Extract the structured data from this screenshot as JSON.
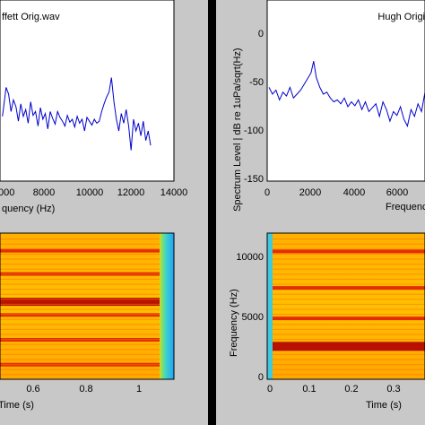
{
  "chart_data": [
    {
      "id": "left-spectrum",
      "type": "line",
      "title": "ffett Orig.wav",
      "xlabel": "quency (Hz)",
      "ylabel": "",
      "xlim": [
        -200,
        14000
      ],
      "ylim": [
        -150,
        0
      ],
      "x_ticks": [
        "000",
        "8000",
        "10000",
        "12000",
        "14000"
      ],
      "grid": false,
      "color": "#0000cc",
      "series": [
        {
          "x": [
            0,
            150,
            300,
            500,
            700,
            900,
            1100,
            1300,
            1500,
            1700,
            1900,
            2100,
            2300,
            2500,
            2700,
            2900,
            3100,
            3300,
            3500,
            3700,
            3900,
            4100,
            4300,
            4500,
            4700,
            4900,
            5100,
            5300,
            5500,
            5700,
            5900,
            6100,
            6300,
            6500,
            6700,
            6900,
            7100,
            7300,
            7500,
            7700,
            7900,
            8100,
            8300,
            8500,
            8700,
            8900,
            9100,
            9300,
            9500,
            9700,
            9900,
            10100,
            10300,
            10500,
            10700,
            10900,
            11100,
            11300,
            11500,
            11700,
            11900,
            12100
          ],
          "y": [
            -85,
            -70,
            -55,
            -62,
            -80,
            -68,
            -75,
            -90,
            -72,
            -85,
            -78,
            -92,
            -70,
            -84,
            -80,
            -95,
            -76,
            -88,
            -82,
            -98,
            -80,
            -87,
            -93,
            -80,
            -86,
            -90,
            -95,
            -84,
            -91,
            -88,
            -96,
            -85,
            -92,
            -88,
            -100,
            -86,
            -90,
            -94,
            -88,
            -92,
            -90,
            -80,
            -72,
            -65,
            -60,
            -45,
            -70,
            -88,
            -100,
            -82,
            -92,
            -78,
            -95,
            -120,
            -88,
            -100,
            -92,
            -105,
            -90,
            -110,
            -100,
            -115
          ]
        }
      ]
    },
    {
      "id": "right-spectrum",
      "type": "line",
      "title": "Hugh Origi",
      "xlabel": "Frequency",
      "ylabel": "Spectrum Level | dB re 1uPa/sqrt(Hz)",
      "xlim": [
        0,
        9000
      ],
      "ylim": [
        -150,
        0
      ],
      "x_ticks": [
        "0",
        "2000",
        "4000",
        "6000"
      ],
      "y_ticks": [
        "0",
        "-50",
        "-100",
        "-150"
      ],
      "grid": false,
      "color": "#0000cc",
      "series": [
        {
          "x": [
            100,
            300,
            500,
            700,
            900,
            1100,
            1300,
            1500,
            1700,
            1900,
            2100,
            2300,
            2500,
            2650,
            2800,
            3000,
            3200,
            3400,
            3600,
            3800,
            4000,
            4200,
            4400,
            4600,
            4800,
            5000,
            5200,
            5400,
            5600,
            5800,
            6000,
            6200,
            6400,
            6600,
            6800,
            7000,
            7200,
            7400,
            7600,
            7800,
            8000,
            8200,
            8400,
            8600,
            8800,
            9000
          ],
          "y": [
            -55,
            -62,
            -58,
            -68,
            -60,
            -64,
            -55,
            -66,
            -62,
            -58,
            -52,
            -46,
            -40,
            -28,
            -45,
            -55,
            -62,
            -60,
            -66,
            -70,
            -68,
            -72,
            -66,
            -75,
            -70,
            -74,
            -68,
            -78,
            -70,
            -80,
            -76,
            -72,
            -85,
            -70,
            -78,
            -90,
            -80,
            -84,
            -75,
            -88,
            -95,
            -78,
            -85,
            -72,
            -80,
            -60
          ]
        }
      ]
    },
    {
      "id": "left-spectrogram",
      "type": "heatmap",
      "title": "",
      "xlabel": "Time (s)",
      "ylabel": "",
      "xlim": [
        0.38,
        1.12
      ],
      "x_ticks": [
        "0.6",
        "0.8",
        "1"
      ],
      "colormap": "jet",
      "bands_relative_height": [
        0.12,
        0.28,
        0.47,
        0.56,
        0.73,
        0.9
      ]
    },
    {
      "id": "right-spectrogram",
      "type": "heatmap",
      "title": "",
      "xlabel": "Time (s)",
      "ylabel": "Frequency (Hz)",
      "xlim": [
        0,
        0.48
      ],
      "ylim": [
        0,
        12000
      ],
      "x_ticks": [
        "0",
        "0.1",
        "0.2",
        "0.3"
      ],
      "y_ticks": [
        "0",
        "5000",
        "10000"
      ],
      "colormap": "jet",
      "bands_hz": [
        2700,
        5000,
        7500,
        10500
      ]
    }
  ]
}
